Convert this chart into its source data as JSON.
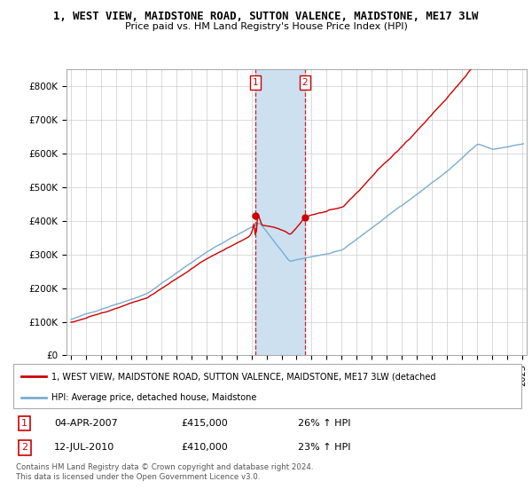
{
  "title_line1": "1, WEST VIEW, MAIDSTONE ROAD, SUTTON VALENCE, MAIDSTONE, ME17 3LW",
  "title_line2": "Price paid vs. HM Land Registry's House Price Index (HPI)",
  "ylabel_ticks": [
    "£0",
    "£100K",
    "£200K",
    "£300K",
    "£400K",
    "£500K",
    "£600K",
    "£700K",
    "£800K"
  ],
  "ytick_values": [
    0,
    100000,
    200000,
    300000,
    400000,
    500000,
    600000,
    700000,
    800000
  ],
  "ylim": [
    0,
    850000
  ],
  "xlim_start": 1994.7,
  "xlim_end": 2025.3,
  "legend_line1": "1, WEST VIEW, MAIDSTONE ROAD, SUTTON VALENCE, MAIDSTONE, ME17 3LW (detached",
  "legend_line2": "HPI: Average price, detached house, Maidstone",
  "sale1_date": "04-APR-2007",
  "sale1_price": "£415,000",
  "sale1_hpi": "26% ↑ HPI",
  "sale1_year": 2007.25,
  "sale1_val": 415000,
  "sale2_date": "12-JUL-2010",
  "sale2_price": "£410,000",
  "sale2_hpi": "23% ↑ HPI",
  "sale2_year": 2010.54,
  "sale2_val": 410000,
  "red_color": "#cc0000",
  "blue_color": "#7aadcf",
  "shade_color": "#cce0f0",
  "bg_color": "#f0f0f0",
  "footnote": "Contains HM Land Registry data © Crown copyright and database right 2024.\nThis data is licensed under the Open Government Licence v3.0."
}
